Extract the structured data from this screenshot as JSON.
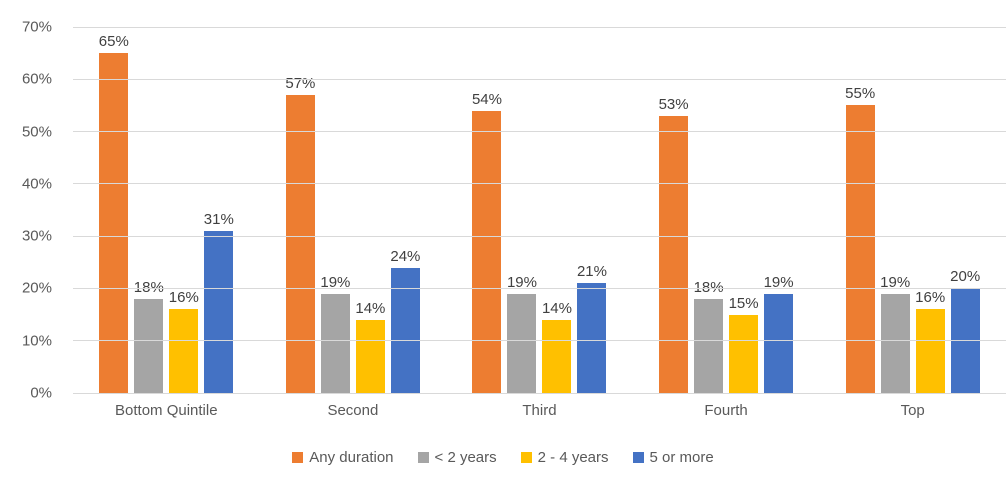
{
  "chart_data": {
    "type": "bar",
    "categories": [
      "Bottom Quintile",
      "Second",
      "Third",
      "Fourth",
      "Top"
    ],
    "series": [
      {
        "name": "Any duration",
        "color": "#ED7D31",
        "values": [
          65,
          57,
          54,
          53,
          55
        ]
      },
      {
        "name": "< 2 years",
        "color": "#A5A5A5",
        "values": [
          18,
          19,
          19,
          18,
          19
        ]
      },
      {
        "name": "2 - 4 years",
        "color": "#FFC000",
        "values": [
          16,
          14,
          14,
          15,
          16
        ]
      },
      {
        "name": "5 or more",
        "color": "#4472C4",
        "values": [
          31,
          24,
          21,
          19,
          20
        ]
      }
    ],
    "data_labels": [
      [
        "65%",
        "57%",
        "54%",
        "53%",
        "55%"
      ],
      [
        "18%",
        "19%",
        "19%",
        "18%",
        "19%"
      ],
      [
        "16%",
        "14%",
        "14%",
        "15%",
        "16%"
      ],
      [
        "31%",
        "24%",
        "21%",
        "19%",
        "20%"
      ]
    ],
    "title": "",
    "xlabel": "",
    "ylabel": "",
    "ylim": [
      0,
      70
    ],
    "ytick_step": 10,
    "ytick_labels": [
      "0%",
      "10%",
      "20%",
      "30%",
      "40%",
      "50%",
      "60%",
      "70%"
    ],
    "grid": true,
    "legend_position": "bottom",
    "colors": {
      "gridline": "#D9D9D9",
      "axis_text": "#595959",
      "data_label_text": "#404040",
      "background": "#FFFFFF"
    }
  }
}
